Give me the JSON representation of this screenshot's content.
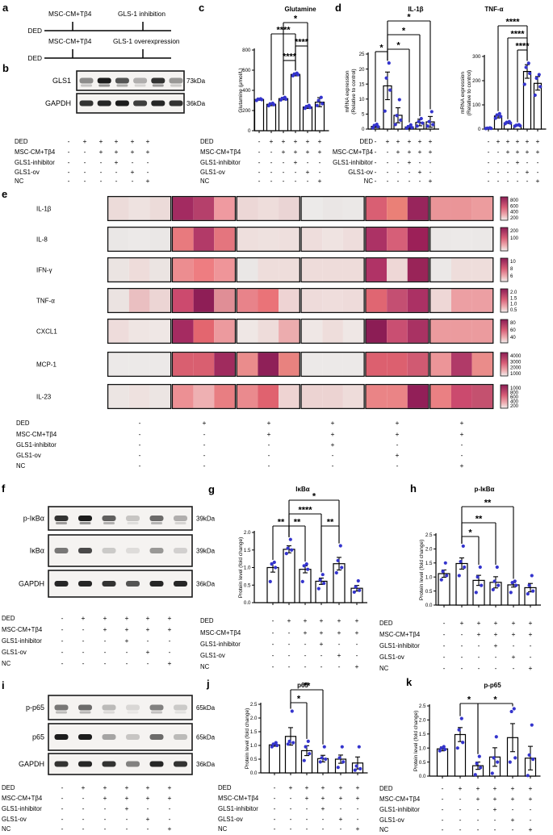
{
  "panel_letters": {
    "a": "a",
    "b": "b",
    "c": "c",
    "d": "d",
    "e": "e",
    "f": "f",
    "g": "g",
    "h": "h",
    "i": "i",
    "j": "j",
    "k": "k"
  },
  "panel_a": {
    "rows": [
      {
        "start_label": "DED",
        "tick_labels": [
          "MSC-CM+Tβ4",
          "GLS-1 inhibition"
        ]
      },
      {
        "start_label": "DED",
        "tick_labels": [
          "MSC-CM+Tβ4",
          "GLS-1 overexpression"
        ]
      }
    ]
  },
  "conditions": {
    "labels": [
      "DED",
      "MSC-CM+Tβ4",
      "GLS1-inhibitor",
      "GLS1-ov",
      "NC"
    ],
    "matrix": [
      [
        "-",
        "+",
        "+",
        "+",
        "+",
        "+"
      ],
      [
        "-",
        "-",
        "+",
        "+",
        "+",
        "+"
      ],
      [
        "-",
        "-",
        "-",
        "+",
        "-",
        "-"
      ],
      [
        "-",
        "-",
        "-",
        "-",
        "+",
        "-"
      ],
      [
        "-",
        "-",
        "-",
        "-",
        "-",
        "+"
      ]
    ]
  },
  "blots": {
    "b": {
      "blots": [
        {
          "protein": "GLS1",
          "kda": "73kDa",
          "doublet": true,
          "lanes": [
            0.45,
            0.95,
            0.7,
            0.3,
            0.85,
            0.4
          ]
        },
        {
          "protein": "GAPDH",
          "kda": "36kDa",
          "doublet": false,
          "lanes": [
            0.85,
            0.9,
            0.95,
            0.8,
            0.9,
            0.85
          ]
        }
      ]
    },
    "f": {
      "blots": [
        {
          "protein": "p-IκBα",
          "kda": "39kDa",
          "doublet": true,
          "lanes": [
            0.85,
            0.95,
            0.65,
            0.2,
            0.6,
            0.3
          ]
        },
        {
          "protein": "IκBα",
          "kda": "39kDa",
          "doublet": false,
          "lanes": [
            0.55,
            0.75,
            0.18,
            0.1,
            0.4,
            0.15
          ]
        },
        {
          "protein": "GAPDH",
          "kda": "36kDa",
          "doublet": false,
          "lanes": [
            0.9,
            0.9,
            0.85,
            0.7,
            0.9,
            0.9
          ]
        }
      ]
    },
    "i": {
      "blots": [
        {
          "protein": "p-p65",
          "kda": "65kDa",
          "doublet": true,
          "lanes": [
            0.55,
            0.6,
            0.25,
            0.12,
            0.5,
            0.18
          ]
        },
        {
          "protein": "p65",
          "kda": "65kDa",
          "doublet": false,
          "lanes": [
            0.95,
            0.95,
            0.35,
            0.2,
            0.6,
            0.25
          ]
        },
        {
          "protein": "GAPDH",
          "kda": "36kDa",
          "doublet": false,
          "lanes": [
            0.85,
            0.9,
            0.85,
            0.5,
            0.9,
            0.85
          ]
        }
      ]
    }
  },
  "chart_data": [
    {
      "id": "c",
      "type": "bar",
      "title": "Glutamine",
      "ylabel": "Glutamine (μmol/L)",
      "ylim": [
        0,
        800
      ],
      "yticks": [
        "0",
        "200",
        "400",
        "600",
        "800"
      ],
      "values": [
        310,
        262,
        318,
        558,
        235,
        283
      ],
      "errors": [
        8,
        14,
        12,
        14,
        14,
        45
      ],
      "dots": [
        [
          300,
          308,
          313,
          316
        ],
        [
          248,
          258,
          266,
          272
        ],
        [
          305,
          313,
          320,
          330
        ],
        [
          545,
          555,
          562,
          570
        ],
        [
          222,
          230,
          240,
          250
        ],
        [
          250,
          268,
          300,
          330
        ]
      ],
      "sig": [
        {
          "a": 3,
          "b": 4,
          "s": "****",
          "y": 75
        },
        {
          "a": 4,
          "b": 5,
          "s": "****",
          "y": 57
        },
        {
          "a": 2,
          "b": 4,
          "s": "****",
          "y": 42
        },
        {
          "a": 3,
          "b": 5,
          "s": "*",
          "y": 28
        }
      ]
    },
    {
      "id": "d1",
      "type": "bar",
      "title": "IL-1β",
      "ylabel": "mRNA expression\n(Relative to control)",
      "ylim": [
        0,
        25
      ],
      "yticks": [
        "0",
        "5",
        "10",
        "15",
        "20",
        "25"
      ],
      "values": [
        0.9,
        14.4,
        4.6,
        0.7,
        2.2,
        2.4
      ],
      "errors": [
        0.4,
        4.6,
        2.5,
        0.4,
        1.1,
        1.8
      ],
      "dots": [
        [
          0.4,
          0.8,
          1.2,
          1.6
        ],
        [
          6,
          13,
          17,
          22
        ],
        [
          1.5,
          3,
          4.5,
          9.8
        ],
        [
          0.3,
          0.5,
          0.8,
          1.4
        ],
        [
          1,
          2,
          2.5,
          3.5
        ],
        [
          1,
          1.5,
          2.5,
          5.8
        ]
      ],
      "sig": [
        {
          "a": 1,
          "b": 2,
          "s": "*",
          "y": 64
        },
        {
          "a": 2,
          "b": 4,
          "s": "*",
          "y": 61
        },
        {
          "a": 2,
          "b": 5,
          "s": "*",
          "y": 43
        },
        {
          "a": 2,
          "b": 6,
          "s": "*",
          "y": 26
        }
      ]
    },
    {
      "id": "d2",
      "type": "bar",
      "title": "TNF-α",
      "ylabel": "mRNA expression\n(Relative to control)",
      "ylim": [
        0,
        300
      ],
      "yticks": [
        "0",
        "100",
        "200",
        "300"
      ],
      "values": [
        3,
        54,
        26,
        15,
        238,
        189
      ],
      "errors": [
        1,
        8,
        3,
        2,
        28,
        28
      ],
      "dots": [
        [
          2,
          3,
          4,
          5
        ],
        [
          45,
          52,
          58,
          64
        ],
        [
          22,
          25,
          28,
          31
        ],
        [
          12,
          14,
          16,
          18
        ],
        [
          185,
          230,
          255,
          272
        ],
        [
          140,
          175,
          210,
          225
        ]
      ],
      "sig": [
        {
          "a": 4,
          "b": 5,
          "s": "****",
          "y": 62
        },
        {
          "a": 3,
          "b": 5,
          "s": "****",
          "y": 47
        },
        {
          "a": 2,
          "b": 5,
          "s": "****",
          "y": 32
        }
      ]
    },
    {
      "id": "g",
      "type": "bar",
      "title": "IκBα",
      "ylabel": "Protein level (fold change)",
      "ylim": [
        0,
        2
      ],
      "yticks": [
        "0.0",
        "0.5",
        "1.0",
        "1.5",
        "2.0"
      ],
      "values": [
        1.0,
        1.52,
        0.95,
        0.61,
        1.11,
        0.41
      ],
      "errors": [
        0.13,
        0.1,
        0.1,
        0.09,
        0.18,
        0.08
      ],
      "dots": [
        [
          0.6,
          1.0,
          1.1,
          1.15
        ],
        [
          1.4,
          1.5,
          1.55,
          1.8
        ],
        [
          0.6,
          0.95,
          1.05,
          1.1
        ],
        [
          0.4,
          0.55,
          0.65,
          0.8
        ],
        [
          0.85,
          1.0,
          1.2,
          1.62
        ],
        [
          0.3,
          0.35,
          0.45,
          0.62
        ]
      ],
      "sig": [
        {
          "a": 1,
          "b": 2,
          "s": "**",
          "y": 57
        },
        {
          "a": 2,
          "b": 3,
          "s": "**",
          "y": 57
        },
        {
          "a": 4,
          "b": 5,
          "s": "**",
          "y": 57
        },
        {
          "a": 2,
          "b": 4,
          "s": "****",
          "y": 42
        },
        {
          "a": 2,
          "b": 5,
          "s": "*",
          "y": 25
        }
      ]
    },
    {
      "id": "h",
      "type": "bar",
      "title": "p-IκBα",
      "ylabel": "Protein level (fold change)",
      "ylim": [
        0,
        2.5
      ],
      "yticks": [
        "0.0",
        "0.5",
        "1.0",
        "1.5",
        "2.0",
        "2.5"
      ],
      "values": [
        1.12,
        1.48,
        0.88,
        0.81,
        0.72,
        0.62
      ],
      "errors": [
        0.13,
        0.2,
        0.18,
        0.2,
        0.08,
        0.15
      ],
      "dots": [
        [
          0.9,
          1.05,
          1.2,
          1.5
        ],
        [
          1.05,
          1.35,
          1.55,
          2.1
        ],
        [
          0.45,
          0.7,
          1.0,
          1.35
        ],
        [
          0.55,
          0.7,
          0.85,
          1.35
        ],
        [
          0.45,
          0.7,
          0.8,
          0.85
        ],
        [
          0.4,
          0.5,
          0.7,
          1.05
        ]
      ],
      "sig": [
        {
          "a": 2,
          "b": 3,
          "s": "*",
          "y": 70
        },
        {
          "a": 2,
          "b": 4,
          "s": "**",
          "y": 53
        },
        {
          "a": 2,
          "b": 5,
          "s": "**",
          "y": 33
        }
      ]
    },
    {
      "id": "j",
      "type": "bar",
      "title": "p65",
      "ylabel": "Protein level (fold change)",
      "ylim": [
        0,
        2.5
      ],
      "yticks": [
        "0.0",
        "0.5",
        "1.0",
        "1.5",
        "2.0",
        "2.5"
      ],
      "values": [
        1.02,
        1.33,
        0.81,
        0.52,
        0.5,
        0.36
      ],
      "errors": [
        0.05,
        0.32,
        0.18,
        0.12,
        0.15,
        0.22
      ],
      "dots": [
        [
          0.95,
          1.0,
          1.05,
          1.1
        ],
        [
          1.05,
          1.1,
          1.15,
          2.25
        ],
        [
          0.45,
          0.7,
          0.95,
          1.15
        ],
        [
          0.4,
          0.5,
          0.55,
          0.95
        ],
        [
          0.2,
          0.4,
          0.55,
          0.95
        ],
        [
          0.1,
          0.15,
          0.25,
          0.95
        ]
      ],
      "sig": [
        {
          "a": 2,
          "b": 3,
          "s": "*",
          "y": 31
        },
        {
          "a": 2,
          "b": 4,
          "s": "**",
          "y": 15
        }
      ]
    },
    {
      "id": "k",
      "type": "bar",
      "title": "p-p65",
      "ylabel": "Protein level (fold change)",
      "ylim": [
        0,
        2.5
      ],
      "yticks": [
        "0.0",
        "0.5",
        "1.0",
        "1.5",
        "2.0",
        "2.5"
      ],
      "values": [
        0.97,
        1.48,
        0.37,
        0.68,
        1.37,
        0.64
      ],
      "errors": [
        0.07,
        0.25,
        0.13,
        0.33,
        0.5,
        0.42
      ],
      "dots": [
        [
          0.9,
          0.95,
          1.0,
          1.05
        ],
        [
          1.0,
          1.2,
          1.65,
          2.05
        ],
        [
          0.05,
          0.3,
          0.45,
          0.7
        ],
        [
          0.1,
          0.5,
          0.65,
          1.4
        ],
        [
          0.5,
          0.65,
          2.3,
          2.4
        ],
        [
          0.02,
          0.6,
          0.75,
          1.82
        ]
      ],
      "sig": [
        {
          "a": 2,
          "b": 3,
          "s": "*",
          "y": 32
        },
        {
          "a": 3,
          "b": 5,
          "s": "*",
          "y": 32
        }
      ]
    }
  ],
  "heatmap": {
    "rows": [
      {
        "label": "IL-1β",
        "colorbar_ticks": [
          "800",
          "600",
          "400",
          "200"
        ],
        "cells": [
          "#ecdbd9",
          "#eee2e0",
          "#ecdbd9",
          "#a32b61",
          "#b5406b",
          "#ef9aa0",
          "#ecd7d6",
          "#eedddb",
          "#ead4d4",
          "#eceae9",
          "#eae6e5",
          "#ebe8e7",
          "#d95f73",
          "#ea8077",
          "#98255c",
          "#ea9598",
          "#ea9598",
          "#ec9c9e"
        ]
      },
      {
        "label": "IL-8",
        "colorbar_ticks": [
          "200",
          "100"
        ],
        "cells": [
          "#eae7e6",
          "#ece9e8",
          "#eae7e6",
          "#e87a7e",
          "#b23a68",
          "#e4757e",
          "#eedfdd",
          "#eee1df",
          "#eedfdd",
          "#eedddc",
          "#efe3e1",
          "#eedddc",
          "#ac3265",
          "#d65f78",
          "#9c2058",
          "#ebe8e7",
          "#ece9e8",
          "#ebe8e7"
        ]
      },
      {
        "label": "IFN-γ",
        "colorbar_ticks": [
          "10",
          "8",
          "6"
        ],
        "cells": [
          "#ebe4e2",
          "#eedcda",
          "#ebe4e2",
          "#ec8d90",
          "#ee7d81",
          "#ef9599",
          "#eae7e6",
          "#eedddb",
          "#eedddb",
          "#eedcda",
          "#eedcda",
          "#eedcda",
          "#b03366",
          "#eed7d6",
          "#992458",
          "#ebe8e7",
          "#eedddb",
          "#eedddb"
        ]
      },
      {
        "label": "TNF-α",
        "colorbar_ticks": [
          "2.0",
          "1.5",
          "1.0",
          "0.5"
        ],
        "cells": [
          "#ebe3e1",
          "#eabfc1",
          "#ecd5d4",
          "#cc4a6e",
          "#8e1e56",
          "#e08e96",
          "#e8838a",
          "#ea7378",
          "#eed3d3",
          "#eedbda",
          "#efdddc",
          "#eedbda",
          "#e06672",
          "#c44f72",
          "#ab3164",
          "#eed7d6",
          "#ec9fa3",
          "#ec9fa3"
        ]
      },
      {
        "label": "CXCL1",
        "colorbar_ticks": [
          "80",
          "60",
          "40"
        ],
        "cells": [
          "#eedcdb",
          "#efe5e3",
          "#efe7e5",
          "#a52b61",
          "#e3666f",
          "#ec9a9e",
          "#efe7e5",
          "#eedcda",
          "#ecacae",
          "#efe7e5",
          "#eedddb",
          "#efe7e5",
          "#8c1d55",
          "#c94f72",
          "#a93263",
          "#eb9b9e",
          "#eb9b9e",
          "#eb9b9e"
        ]
      },
      {
        "label": "MCP-1",
        "colorbar_ticks": [
          "4000",
          "3000",
          "2000",
          "1000"
        ],
        "cells": [
          "#ece9e8",
          "#ece9e8",
          "#ece9e8",
          "#d95f70",
          "#d95f70",
          "#a02b5e",
          "#ea8c8c",
          "#8f2058",
          "#e8827f",
          "#ece9e8",
          "#ece9e8",
          "#ece9e8",
          "#dc606f",
          "#dc606f",
          "#d05a72",
          "#ec9598",
          "#b03a68",
          "#ea8c8a"
        ]
      },
      {
        "label": "IL-23",
        "colorbar_ticks": [
          "1000",
          "800",
          "600",
          "400",
          "200"
        ],
        "cells": [
          "#ece5e3",
          "#eee1df",
          "#ece5e3",
          "#ec9094",
          "#eeb0b2",
          "#e87e82",
          "#ea8a8e",
          "#e0626f",
          "#eed3d2",
          "#ecd3d2",
          "#ecd3d2",
          "#eedcda",
          "#ea8486",
          "#ea8486",
          "#921f58",
          "#ea8083",
          "#cb4a6e",
          "#c4516f"
        ]
      }
    ]
  },
  "colors": {
    "dot": "#3434cd",
    "bar_fill": "#ffffff",
    "stroke": "#000000",
    "colorbar_top": "#8c1d55",
    "colorbar_mid": "#d95f78",
    "colorbar_bottom": "#f2efee",
    "blot_bg": "#f5f3f1",
    "band": "#101010"
  }
}
